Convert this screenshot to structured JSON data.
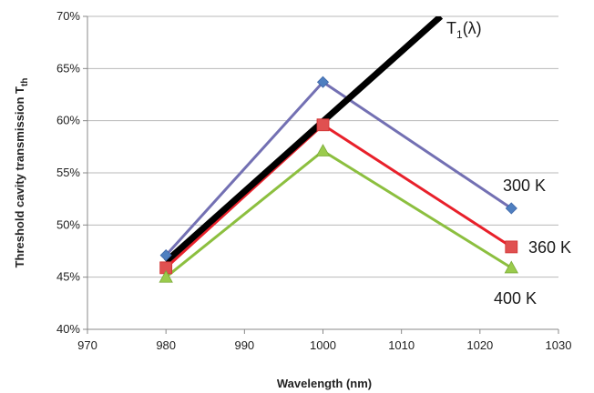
{
  "chart_data": {
    "type": "line",
    "xlabel": "Wavelength (nm)",
    "ylabel": "Threshold cavity transmission T",
    "ylabel_sub": "th",
    "xlim": [
      970,
      1030
    ],
    "ylim": [
      40,
      70
    ],
    "x_ticks": [
      970,
      980,
      990,
      1000,
      1010,
      1020,
      1030
    ],
    "y_ticks": [
      40,
      45,
      50,
      55,
      60,
      65,
      70
    ],
    "y_tick_suffix": "%",
    "grid": {
      "horizontal": true,
      "vertical": false
    },
    "reference_line": {
      "label": "T",
      "label_sub": "1",
      "label_suffix": "(λ)",
      "color": "#000000",
      "x": [
        980,
        1015
      ],
      "y": [
        46.5,
        70
      ]
    },
    "series": [
      {
        "name": "300 K",
        "color": "#7370b3",
        "marker_color": "#4f7fc0",
        "marker": "diamond",
        "x": [
          980,
          1000,
          1024
        ],
        "y": [
          47.1,
          63.7,
          51.6
        ]
      },
      {
        "name": "360 K",
        "color": "#e8202a",
        "marker_color": "#e05050",
        "marker": "square",
        "x": [
          980,
          1000,
          1024
        ],
        "y": [
          45.9,
          59.6,
          47.9
        ]
      },
      {
        "name": "400 K",
        "color": "#8cbf3f",
        "marker_color": "#9acb4c",
        "marker": "triangle",
        "x": [
          980,
          1000,
          1024
        ],
        "y": [
          45.0,
          57.1,
          45.9
        ]
      }
    ]
  }
}
